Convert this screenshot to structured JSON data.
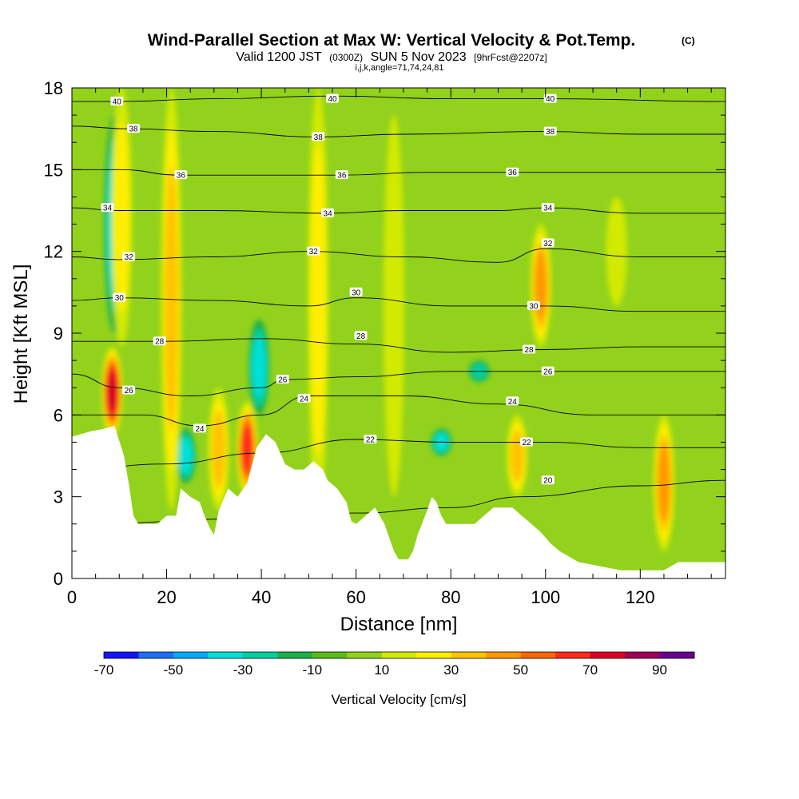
{
  "chart_data": {
    "type": "heatmap",
    "title": "Wind-Parallel Section at Max W: Vertical Velocity & Pot.Temp.",
    "title_mark": "(C)",
    "subtitle_valid": "Valid 1200 JST",
    "subtitle_utc": "(0300Z)",
    "subtitle_date": "SUN 5 Nov 2023",
    "subtitle_fcst": "[9hrFcst@2207z]",
    "subtitle_params": "i,j,k,angle=71,74,24,81",
    "xlabel": "Distance [nm]",
    "ylabel": "Height [Kft MSL]",
    "xlim": [
      0,
      138
    ],
    "ylim": [
      0,
      18
    ],
    "x_ticks": [
      0,
      20,
      40,
      60,
      80,
      100,
      120
    ],
    "y_ticks": [
      0,
      3,
      6,
      9,
      12,
      15,
      18
    ],
    "x_tick_labels": [
      "0",
      "20",
      "40",
      "60",
      "80",
      "100",
      "120"
    ],
    "y_tick_labels": [
      "0",
      "3",
      "6",
      "9",
      "12",
      "15",
      "18"
    ],
    "background_field_cms": 5,
    "updrafts_cms": [
      {
        "x": 8.5,
        "ytop": 8.5,
        "ybot": 5.2,
        "peak": 70
      },
      {
        "x": 10.5,
        "ytop": 18,
        "ybot": 8.5,
        "peak": 25
      },
      {
        "x": 21,
        "ytop": 18,
        "ybot": 2.5,
        "peak": 35
      },
      {
        "x": 31,
        "ytop": 7,
        "ybot": 2.5,
        "peak": 35
      },
      {
        "x": 37,
        "ytop": 6.5,
        "ybot": 3,
        "peak": 60
      },
      {
        "x": 52,
        "ytop": 18,
        "ybot": 2.5,
        "peak": 20
      },
      {
        "x": 68,
        "ytop": 17,
        "ybot": 3,
        "peak": 15
      },
      {
        "x": 94,
        "ytop": 6,
        "ybot": 3,
        "peak": 30
      },
      {
        "x": 99,
        "ytop": 13,
        "ybot": 8.5,
        "peak": 40
      },
      {
        "x": 115,
        "ytop": 14,
        "ybot": 10,
        "peak": 15
      },
      {
        "x": 125,
        "ytop": 6,
        "ybot": 1,
        "peak": 40
      }
    ],
    "downdrafts_cms": [
      {
        "x": 9,
        "ytop": 17,
        "ybot": 9,
        "peak": -30
      },
      {
        "x": 24,
        "ytop": 5.5,
        "ybot": 3.5,
        "peak": -30
      },
      {
        "x": 39.5,
        "ytop": 9.5,
        "ybot": 6,
        "peak": -30
      },
      {
        "x": 78,
        "ytop": 5.5,
        "ybot": 4.5,
        "peak": -30
      },
      {
        "x": 86,
        "ytop": 8,
        "ybot": 7.2,
        "peak": -25
      }
    ],
    "terrain_kft": [
      [
        0,
        5.2
      ],
      [
        4,
        5.4
      ],
      [
        7,
        5.5
      ],
      [
        9,
        5.6
      ],
      [
        11,
        4.5
      ],
      [
        12,
        3.5
      ],
      [
        13,
        2.3
      ],
      [
        14,
        2.0
      ],
      [
        16,
        2.0
      ],
      [
        18,
        2.0
      ],
      [
        20,
        2.3
      ],
      [
        22,
        2.3
      ],
      [
        23,
        3.3
      ],
      [
        25,
        3.0
      ],
      [
        27,
        2.8
      ],
      [
        28,
        2.3
      ],
      [
        29,
        1.9
      ],
      [
        30,
        1.6
      ],
      [
        31,
        2.5
      ],
      [
        33,
        3.3
      ],
      [
        35,
        3.0
      ],
      [
        37,
        3.5
      ],
      [
        39,
        4.8
      ],
      [
        41,
        5.3
      ],
      [
        43,
        5.0
      ],
      [
        45,
        4.2
      ],
      [
        47,
        4.0
      ],
      [
        49,
        4.0
      ],
      [
        51,
        4.3
      ],
      [
        53,
        4.0
      ],
      [
        54,
        3.6
      ],
      [
        56,
        3.3
      ],
      [
        58,
        2.8
      ],
      [
        59,
        2.1
      ],
      [
        60,
        2.0
      ],
      [
        62,
        2.3
      ],
      [
        64,
        2.6
      ],
      [
        66,
        2.0
      ],
      [
        68,
        1.0
      ],
      [
        69,
        0.7
      ],
      [
        71,
        0.7
      ],
      [
        72,
        1.0
      ],
      [
        73,
        1.6
      ],
      [
        75,
        2.5
      ],
      [
        76,
        3.0
      ],
      [
        77,
        2.8
      ],
      [
        78,
        2.3
      ],
      [
        79,
        2.0
      ],
      [
        81,
        2.0
      ],
      [
        83,
        2.0
      ],
      [
        85,
        2.0
      ],
      [
        87,
        2.3
      ],
      [
        89,
        2.6
      ],
      [
        91,
        2.6
      ],
      [
        93,
        2.6
      ],
      [
        95,
        2.3
      ],
      [
        97,
        2.0
      ],
      [
        99,
        1.7
      ],
      [
        101,
        1.3
      ],
      [
        103,
        1.0
      ],
      [
        105,
        0.8
      ],
      [
        107,
        0.6
      ],
      [
        110,
        0.5
      ],
      [
        113,
        0.4
      ],
      [
        116,
        0.3
      ],
      [
        119,
        0.3
      ],
      [
        122,
        0.3
      ],
      [
        125,
        0.3
      ],
      [
        128,
        0.6
      ],
      [
        131,
        0.6
      ],
      [
        134,
        0.6
      ],
      [
        138,
        0.6
      ]
    ],
    "theta_contour_levels_c": [
      20,
      22,
      24,
      26,
      28,
      30,
      32,
      34,
      36,
      38,
      40
    ],
    "theta_levels_kft": [
      {
        "level": 20,
        "points": [
          [
            0,
            2.0
          ],
          [
            40,
            2.2
          ],
          [
            60,
            2.4
          ],
          [
            80,
            2.6
          ],
          [
            95,
            3.0
          ],
          [
            120,
            3.4
          ],
          [
            138,
            3.6
          ]
        ]
      },
      {
        "level": 22,
        "points": [
          [
            0,
            4.0
          ],
          [
            20,
            4.2
          ],
          [
            40,
            4.6
          ],
          [
            60,
            5.1
          ],
          [
            80,
            5.0
          ],
          [
            100,
            5.0
          ],
          [
            120,
            4.8
          ],
          [
            138,
            4.8
          ]
        ]
      },
      {
        "level": 24,
        "points": [
          [
            0,
            6.0
          ],
          [
            15,
            6.0
          ],
          [
            27,
            5.6
          ],
          [
            40,
            6.0
          ],
          [
            50,
            6.7
          ],
          [
            70,
            6.7
          ],
          [
            90,
            6.4
          ],
          [
            110,
            6.0
          ],
          [
            138,
            6.0
          ]
        ]
      },
      {
        "level": 26,
        "points": [
          [
            0,
            7.5
          ],
          [
            10,
            7.0
          ],
          [
            25,
            6.7
          ],
          [
            40,
            7.0
          ],
          [
            45,
            7.3
          ],
          [
            60,
            7.4
          ],
          [
            80,
            7.6
          ],
          [
            100,
            7.6
          ],
          [
            120,
            7.6
          ],
          [
            138,
            7.6
          ]
        ]
      },
      {
        "level": 28,
        "points": [
          [
            0,
            8.7
          ],
          [
            10,
            8.7
          ],
          [
            20,
            8.7
          ],
          [
            40,
            8.8
          ],
          [
            60,
            8.6
          ],
          [
            80,
            8.3
          ],
          [
            100,
            8.4
          ],
          [
            120,
            8.5
          ],
          [
            138,
            8.5
          ]
        ]
      },
      {
        "level": 30,
        "points": [
          [
            0,
            10.2
          ],
          [
            10,
            10.3
          ],
          [
            30,
            10.2
          ],
          [
            50,
            10.0
          ],
          [
            60,
            10.3
          ],
          [
            80,
            10.0
          ],
          [
            100,
            10.0
          ],
          [
            120,
            9.8
          ],
          [
            138,
            9.8
          ]
        ]
      },
      {
        "level": 32,
        "points": [
          [
            0,
            11.8
          ],
          [
            10,
            11.7
          ],
          [
            30,
            11.8
          ],
          [
            50,
            12.0
          ],
          [
            70,
            11.8
          ],
          [
            90,
            11.6
          ],
          [
            100,
            12.1
          ],
          [
            120,
            11.8
          ],
          [
            138,
            11.8
          ]
        ]
      },
      {
        "level": 34,
        "points": [
          [
            0,
            13.6
          ],
          [
            10,
            13.5
          ],
          [
            30,
            13.5
          ],
          [
            54,
            13.4
          ],
          [
            70,
            13.5
          ],
          [
            90,
            13.5
          ],
          [
            100,
            13.6
          ],
          [
            120,
            13.4
          ],
          [
            138,
            13.4
          ]
        ]
      },
      {
        "level": 36,
        "points": [
          [
            0,
            15.0
          ],
          [
            10,
            15.0
          ],
          [
            23,
            14.8
          ],
          [
            57,
            14.8
          ],
          [
            75,
            14.9
          ],
          [
            93,
            14.9
          ],
          [
            110,
            14.9
          ],
          [
            138,
            14.9
          ]
        ]
      },
      {
        "level": 38,
        "points": [
          [
            0,
            16.6
          ],
          [
            12,
            16.5
          ],
          [
            30,
            16.4
          ],
          [
            52,
            16.2
          ],
          [
            70,
            16.3
          ],
          [
            100,
            16.4
          ],
          [
            120,
            16.3
          ],
          [
            138,
            16.3
          ]
        ]
      },
      {
        "level": 40,
        "points": [
          [
            0,
            17.5
          ],
          [
            10,
            17.5
          ],
          [
            30,
            17.6
          ],
          [
            55,
            17.7
          ],
          [
            80,
            17.6
          ],
          [
            101,
            17.6
          ],
          [
            138,
            17.5
          ]
        ]
      }
    ],
    "theta_label_positions": [
      {
        "text": "40",
        "x": 9.5,
        "y": 17.5
      },
      {
        "text": "40",
        "x": 55,
        "y": 17.6
      },
      {
        "text": "40",
        "x": 101,
        "y": 17.6
      },
      {
        "text": "38",
        "x": 13,
        "y": 16.5
      },
      {
        "text": "38",
        "x": 52,
        "y": 16.2
      },
      {
        "text": "38",
        "x": 101,
        "y": 16.4
      },
      {
        "text": "36",
        "x": 23,
        "y": 14.8
      },
      {
        "text": "36",
        "x": 57,
        "y": 14.8
      },
      {
        "text": "36",
        "x": 93,
        "y": 14.9
      },
      {
        "text": "34",
        "x": 7.5,
        "y": 13.6
      },
      {
        "text": "34",
        "x": 54,
        "y": 13.4
      },
      {
        "text": "34",
        "x": 100.5,
        "y": 13.6
      },
      {
        "text": "32",
        "x": 12,
        "y": 11.8
      },
      {
        "text": "32",
        "x": 51,
        "y": 12.0
      },
      {
        "text": "32",
        "x": 100.5,
        "y": 12.3
      },
      {
        "text": "30",
        "x": 10,
        "y": 10.3
      },
      {
        "text": "30",
        "x": 60,
        "y": 10.5
      },
      {
        "text": "30",
        "x": 97.5,
        "y": 10.0
      },
      {
        "text": "28",
        "x": 18.5,
        "y": 8.7
      },
      {
        "text": "28",
        "x": 61,
        "y": 8.9
      },
      {
        "text": "28",
        "x": 96.5,
        "y": 8.4
      },
      {
        "text": "26",
        "x": 12,
        "y": 6.9
      },
      {
        "text": "26",
        "x": 44.5,
        "y": 7.3
      },
      {
        "text": "26",
        "x": 100.5,
        "y": 7.6
      },
      {
        "text": "24",
        "x": 27,
        "y": 5.5
      },
      {
        "text": "24",
        "x": 49,
        "y": 6.6
      },
      {
        "text": "24",
        "x": 93,
        "y": 6.5
      },
      {
        "text": "22",
        "x": 63,
        "y": 5.1
      },
      {
        "text": "22",
        "x": 96,
        "y": 5.0
      },
      {
        "text": "20",
        "x": 100.5,
        "y": 3.6
      }
    ],
    "colorbar": {
      "label": "Vertical Velocity [cm/s]",
      "tick_labels": [
        "-70",
        "-50",
        "-30",
        "-10",
        "10",
        "30",
        "50",
        "70",
        "90"
      ],
      "bin_edges": [
        -70,
        -60,
        -50,
        -40,
        -30,
        -20,
        -10,
        0,
        10,
        20,
        30,
        40,
        50,
        60,
        70,
        80,
        90
      ],
      "colors": [
        "#1414ff",
        "#1e6eff",
        "#00aaff",
        "#00e0d8",
        "#00d0a0",
        "#1ab04a",
        "#5abc18",
        "#92d21c",
        "#d2ea00",
        "#ffee00",
        "#ffc400",
        "#ff9a00",
        "#ff6600",
        "#ff2a1a",
        "#dd0022",
        "#a00055",
        "#6a0090"
      ]
    }
  }
}
